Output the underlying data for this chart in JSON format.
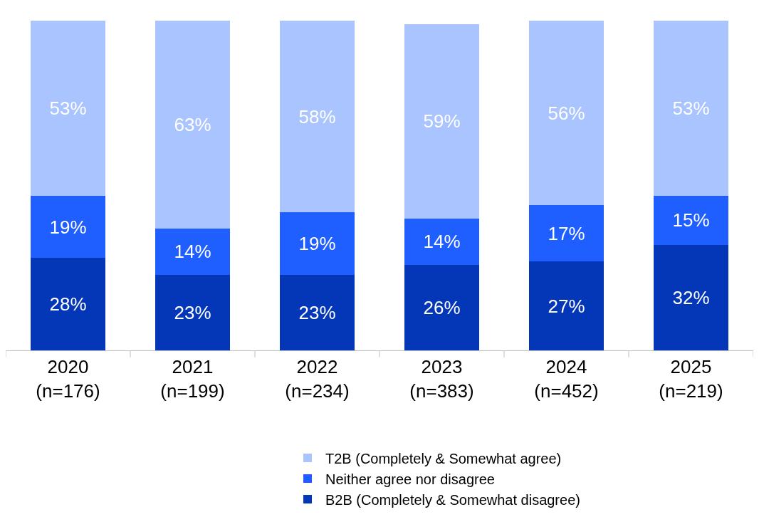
{
  "chart_data": {
    "type": "bar",
    "stacked": true,
    "categories": [
      "2020\n(n=176)",
      "2021\n(n=199)",
      "2022\n(n=234)",
      "2023\n(n=383)",
      "2024\n(n=452)",
      "2025\n(n=219)"
    ],
    "series": [
      {
        "name": "B2B (Completely & Somewhat disagree)",
        "color": "#0437b8",
        "values": [
          28,
          23,
          23,
          26,
          27,
          32
        ],
        "value_labels": [
          "28%",
          "23%",
          "23%",
          "26%",
          "27%",
          "32%"
        ]
      },
      {
        "name": "Neither agree nor disagree",
        "color": "#1f5fff",
        "values": [
          19,
          14,
          19,
          14,
          17,
          15
        ],
        "value_labels": [
          "19%",
          "14%",
          "19%",
          "14%",
          "17%",
          "15%"
        ]
      },
      {
        "name": "T2B (Completely & Somewhat agree)",
        "color": "#a9c4ff",
        "values": [
          53,
          63,
          58,
          59,
          56,
          53
        ],
        "value_labels": [
          "53%",
          "63%",
          "58%",
          "59%",
          "56%",
          "53%"
        ]
      }
    ],
    "tick_labels": "x",
    "legend": "bottom right"
  }
}
